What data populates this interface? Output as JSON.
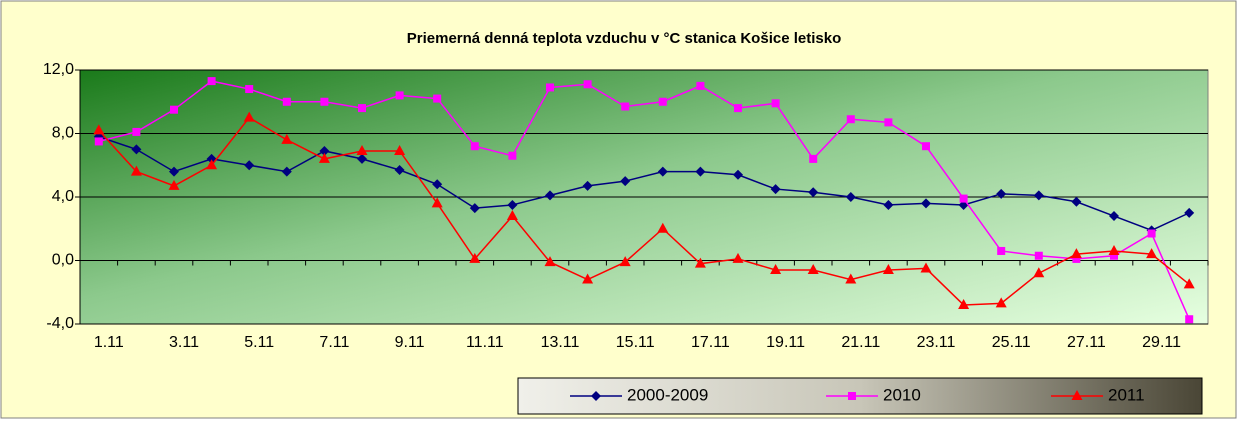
{
  "chart_data": {
    "type": "line",
    "title": "Priemerná denná teplota vzduchu v °C stanica Košice letisko",
    "categories": [
      "1.11",
      null,
      "3.11",
      null,
      "5.11",
      null,
      "7.11",
      null,
      "9.11",
      null,
      "11.11",
      null,
      "13.11",
      null,
      "15.11",
      null,
      "17.11",
      null,
      "19.11",
      null,
      "21.11",
      null,
      "23.11",
      null,
      "25.11",
      null,
      "27.11",
      null,
      "29.11",
      null
    ],
    "series": [
      {
        "name": "2000-2009",
        "color": "#000080",
        "marker": "diamond",
        "values": [
          7.8,
          7.0,
          5.6,
          6.4,
          6.0,
          5.6,
          6.9,
          6.4,
          5.7,
          4.8,
          3.3,
          3.5,
          4.1,
          4.7,
          5.0,
          5.6,
          5.6,
          5.4,
          4.5,
          4.3,
          4.0,
          3.5,
          3.6,
          3.5,
          4.2,
          4.1,
          3.7,
          2.8,
          1.9,
          3.0
        ]
      },
      {
        "name": "2010",
        "color": "#ff00ff",
        "marker": "square",
        "values": [
          7.5,
          8.1,
          9.5,
          11.3,
          10.8,
          10.0,
          10.0,
          9.6,
          10.4,
          10.2,
          7.2,
          6.6,
          10.9,
          11.1,
          9.7,
          10.0,
          11.0,
          9.6,
          9.9,
          6.4,
          8.9,
          8.7,
          7.2,
          3.9,
          0.6,
          0.3,
          0.1,
          0.3,
          1.7,
          -3.7
        ]
      },
      {
        "name": "2011",
        "color": "#ff0000",
        "marker": "triangle",
        "values": [
          8.2,
          5.6,
          4.7,
          6.0,
          9.0,
          7.6,
          6.4,
          6.9,
          6.9,
          3.6,
          0.1,
          2.8,
          -0.1,
          -1.2,
          -0.1,
          2.0,
          -0.2,
          0.1,
          -0.6,
          -0.6,
          -1.2,
          -0.6,
          -0.5,
          -2.8,
          -2.7,
          -0.8,
          0.4,
          0.6,
          0.4,
          -1.5
        ]
      }
    ],
    "ylim": [
      -4,
      12
    ],
    "yticks": [
      {
        "value": -4,
        "label": "-4,0"
      },
      {
        "value": 0,
        "label": "0,0"
      },
      {
        "value": 4,
        "label": "4,0"
      },
      {
        "value": 8,
        "label": "8,0"
      },
      {
        "value": 12,
        "label": "12,0"
      }
    ],
    "grid": true,
    "legend": "bottom"
  }
}
